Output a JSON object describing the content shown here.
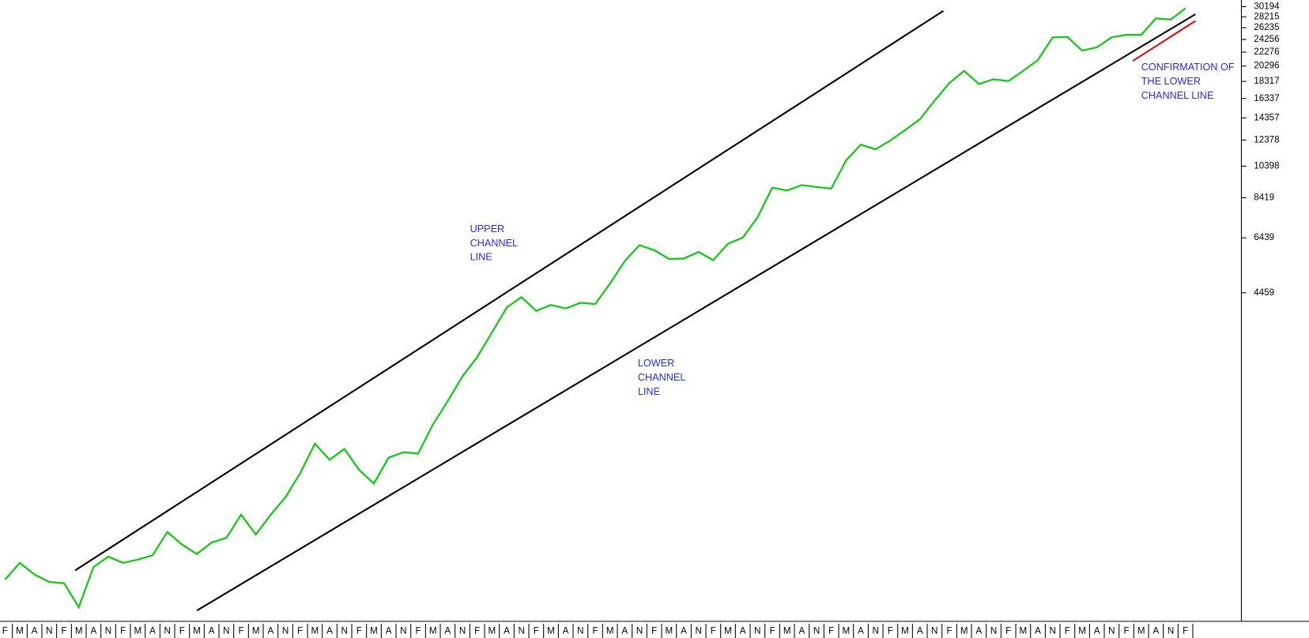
{
  "chart_data": {
    "type": "line",
    "log_scale": true,
    "color": "#19c819",
    "categories": [
      "F",
      "M",
      "A",
      "N",
      "F",
      "M",
      "A",
      "N",
      "F",
      "M",
      "A",
      "N",
      "F",
      "M",
      "A",
      "N",
      "F",
      "M",
      "A",
      "N",
      "F",
      "M",
      "A",
      "N",
      "F",
      "M",
      "A",
      "N",
      "F",
      "M",
      "A",
      "N",
      "F",
      "M",
      "A",
      "N",
      "F",
      "M",
      "A",
      "N",
      "F",
      "M",
      "A",
      "N",
      "F",
      "M",
      "A",
      "N",
      "F",
      "M",
      "A",
      "N",
      "F",
      "M",
      "A",
      "N",
      "F",
      "M",
      "A",
      "N",
      "F",
      "M",
      "A",
      "N",
      "F",
      "M",
      "A",
      "N",
      "F",
      "M",
      "A",
      "N",
      "F",
      "M",
      "A",
      "N",
      "F",
      "M",
      "A",
      "N",
      "F"
    ],
    "values": [
      655,
      733,
      678,
      645,
      640,
      545,
      713,
      764,
      733,
      749,
      771,
      901,
      828,
      778,
      840,
      866,
      1011,
      886,
      1010,
      1136,
      1333,
      1625,
      1460,
      1570,
      1365,
      1245,
      1481,
      1535,
      1522,
      1848,
      2160,
      2550,
      2900,
      3420,
      4040,
      4330,
      3950,
      4110,
      4014,
      4170,
      4135,
      4740,
      5510,
      6130,
      5927,
      5590,
      5605,
      5860,
      5545,
      6190,
      6445,
      7380,
      9000,
      8830,
      9160,
      9040,
      8950,
      10800,
      12000,
      11630,
      12340,
      13230,
      14220,
      16100,
      18120,
      19650,
      18000,
      18576,
      18360,
      19650,
      21130,
      24580,
      24650,
      22500,
      23000,
      24600,
      25000,
      25000,
      27900,
      27700,
      29850
    ],
    "ylim": [
      496,
      31560
    ],
    "yticks": [
      30194,
      28215,
      26235,
      24256,
      22276,
      20296,
      18317,
      16337,
      14357,
      12378,
      10398,
      8419,
      6439,
      4459
    ],
    "annotations": [
      [
        "UPPER",
        "CHANNEL",
        "LINE"
      ],
      [
        "LOWER",
        "CHANNEL",
        "LINE"
      ],
      [
        "CONFIRMATION OF",
        "THE LOWER",
        "CHANNEL LINE"
      ]
    ]
  }
}
